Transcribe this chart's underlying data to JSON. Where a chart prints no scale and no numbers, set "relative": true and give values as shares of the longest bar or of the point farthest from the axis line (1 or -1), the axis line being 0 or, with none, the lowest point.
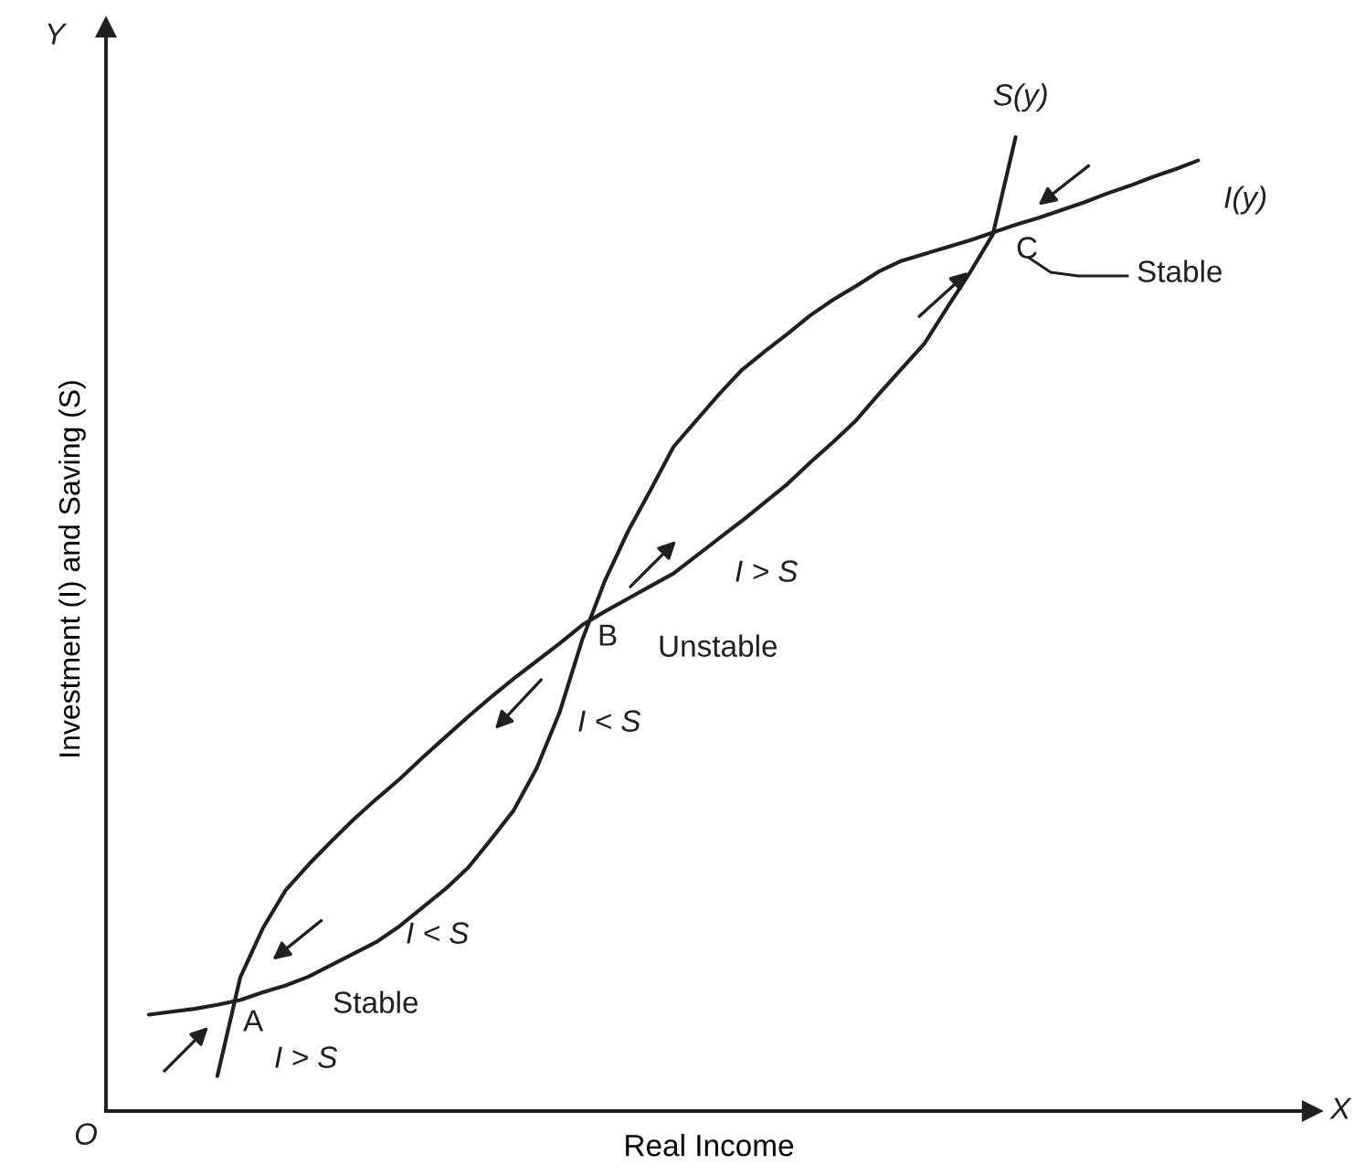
{
  "chart_data": {
    "type": "line",
    "relative": true,
    "xlabel": "Real Income",
    "ylabel": "Investment (I) and Saving (S)",
    "legend": false,
    "categories": [
      null,
      null,
      null,
      null,
      null,
      null,
      null,
      null,
      null,
      null,
      null,
      null,
      null,
      null,
      null,
      null,
      null,
      null,
      null,
      null,
      null,
      null,
      null,
      null,
      null,
      null,
      null,
      null,
      null,
      null,
      null,
      null,
      null,
      null,
      null,
      null,
      null,
      null,
      null,
      null,
      null,
      null,
      null,
      null,
      null,
      null,
      null
    ],
    "series": [
      {
        "name": "S(y)",
        "color": "#231f20",
        "values": [
          null,
          null,
          null,
          0.036,
          0.137,
          0.188,
          0.227,
          0.253,
          0.277,
          0.3,
          0.321,
          0.341,
          0.363,
          0.384,
          0.405,
          0.425,
          0.444,
          0.462,
          0.48,
          0.499,
          0.513,
          0.526,
          0.539,
          0.552,
          0.57,
          0.588,
          0.606,
          0.625,
          0.644,
          0.666,
          0.687,
          0.709,
          0.736,
          0.762,
          0.788,
          0.825,
          0.861,
          0.9,
          1.0,
          null,
          null,
          null,
          null,
          null,
          null,
          null,
          null
        ]
      },
      {
        "name": "I(y)",
        "color": "#231f20",
        "values": [
          0.099,
          0.102,
          0.105,
          0.109,
          0.114,
          0.122,
          0.129,
          0.138,
          0.15,
          0.162,
          0.174,
          0.19,
          0.209,
          0.228,
          0.25,
          0.279,
          0.309,
          0.352,
          0.409,
          0.484,
          0.545,
          0.595,
          0.638,
          0.682,
          0.709,
          0.736,
          0.761,
          0.78,
          0.798,
          0.817,
          0.833,
          0.847,
          0.862,
          0.873,
          0.88,
          0.887,
          0.894,
          0.902,
          0.91,
          0.917,
          0.925,
          0.933,
          0.942,
          0.95,
          0.959,
          0.967,
          0.976
        ]
      }
    ],
    "annotations": [
      "Y",
      "X",
      "O",
      "A",
      "B",
      "C",
      "Stable",
      "Unstable",
      "Stable",
      "I > S",
      "I < S",
      "I < S",
      "I > S"
    ]
  }
}
